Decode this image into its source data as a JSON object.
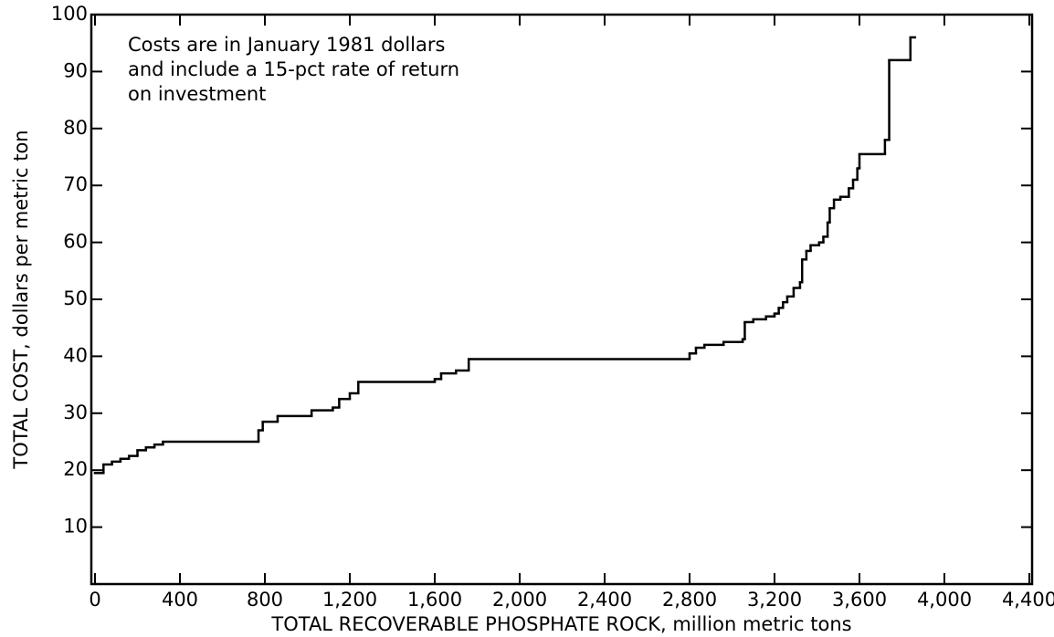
{
  "chart_data": {
    "type": "step",
    "x_label": "TOTAL RECOVERABLE PHOSPHATE ROCK, million metric tons",
    "y_label": "TOTAL COST, dollars per metric ton",
    "annotation": [
      "Costs are in January 1981 dollars",
      "and include a 15-pct rate of return",
      "on investment"
    ],
    "xlim": [
      0,
      4400
    ],
    "ylim": [
      0,
      100
    ],
    "xticks": [
      0,
      400,
      800,
      {
        "value": 1200,
        "label": "1,200"
      },
      {
        "value": 1600,
        "label": "1,600"
      },
      {
        "value": 2000,
        "label": "2,000"
      },
      {
        "value": 2400,
        "label": "2,400"
      },
      {
        "value": 2800,
        "label": "2,800"
      },
      {
        "value": 3200,
        "label": "3,200"
      },
      {
        "value": 3600,
        "label": "3,600"
      },
      {
        "value": 4000,
        "label": "4,000"
      },
      {
        "value": 4400,
        "label": "4,400"
      }
    ],
    "yticks": [
      10,
      20,
      30,
      40,
      50,
      60,
      70,
      80,
      90,
      100
    ],
    "color": "#000000",
    "x": [
      0,
      40,
      80,
      120,
      160,
      200,
      240,
      280,
      320,
      770,
      790,
      860,
      1020,
      1120,
      1150,
      1200,
      1240,
      1600,
      1630,
      1700,
      1760,
      2800,
      2830,
      2870,
      2960,
      3050,
      3060,
      3100,
      3160,
      3200,
      3220,
      3240,
      3260,
      3290,
      3320,
      3330,
      3350,
      3370,
      3410,
      3430,
      3450,
      3460,
      3480,
      3510,
      3550,
      3570,
      3590,
      3600,
      3720,
      3740,
      3840
    ],
    "values": [
      19.5,
      21,
      21.5,
      22,
      22.5,
      23.5,
      24,
      24.5,
      25,
      27,
      28.5,
      29.5,
      30.5,
      31,
      32.5,
      33.5,
      35.5,
      36,
      37,
      37.5,
      39.5,
      40.5,
      41.5,
      42,
      42.5,
      43,
      46,
      46.5,
      47,
      47.5,
      48.5,
      49.5,
      50.5,
      52,
      53,
      57,
      58.5,
      59.5,
      60,
      61,
      63.5,
      66,
      67.5,
      68,
      69.5,
      71,
      73,
      75.5,
      78,
      92,
      96
    ]
  }
}
